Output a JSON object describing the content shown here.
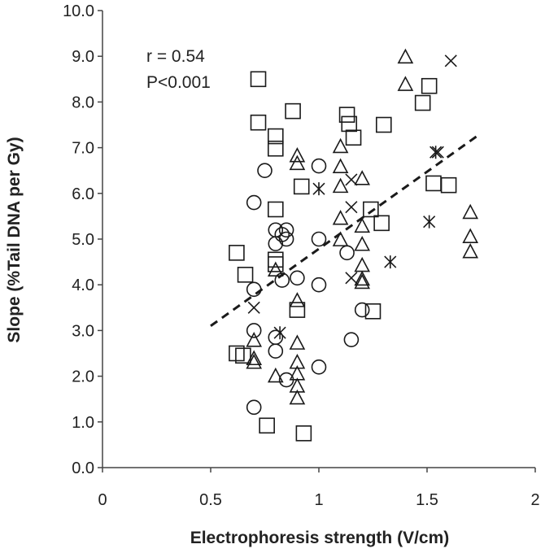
{
  "chart_data": {
    "type": "scatter",
    "title": "",
    "xlabel": "Electrophoresis strength (V/cm)",
    "ylabel": "Slope (%Tail DNA per Gy)",
    "xlim": [
      0,
      2
    ],
    "ylim": [
      0,
      10
    ],
    "xticks": [
      "0",
      "0.5",
      "1",
      "1.5",
      "2"
    ],
    "yticks": [
      "0.0",
      "1.0",
      "2.0",
      "3.0",
      "4.0",
      "5.0",
      "6.0",
      "7.0",
      "8.0",
      "9.0",
      "10.0"
    ],
    "annotations": {
      "r": "r = 0.54",
      "p": "P<0.001"
    },
    "trendline": {
      "style": "dashed",
      "x": [
        0.5,
        1.73
      ],
      "y": [
        3.1,
        7.25
      ]
    },
    "series": [
      {
        "name": "square",
        "marker": "square",
        "points": [
          [
            0.62,
            4.7
          ],
          [
            0.66,
            4.22
          ],
          [
            0.62,
            2.5
          ],
          [
            0.65,
            2.45
          ],
          [
            0.72,
            8.5
          ],
          [
            0.72,
            7.55
          ],
          [
            0.8,
            7.25
          ],
          [
            0.8,
            6.98
          ],
          [
            0.8,
            5.65
          ],
          [
            0.8,
            4.55
          ],
          [
            0.8,
            4.45
          ],
          [
            0.76,
            0.92
          ],
          [
            0.88,
            7.8
          ],
          [
            0.92,
            6.15
          ],
          [
            0.9,
            3.45
          ],
          [
            0.93,
            0.75
          ],
          [
            1.13,
            7.72
          ],
          [
            1.14,
            7.52
          ],
          [
            1.16,
            7.22
          ],
          [
            1.3,
            7.5
          ],
          [
            1.24,
            5.65
          ],
          [
            1.29,
            5.35
          ],
          [
            1.25,
            3.42
          ],
          [
            1.48,
            7.98
          ],
          [
            1.51,
            8.35
          ],
          [
            1.53,
            6.22
          ],
          [
            1.6,
            6.18
          ]
        ]
      },
      {
        "name": "triangle",
        "marker": "triangle",
        "points": [
          [
            0.7,
            2.78
          ],
          [
            0.7,
            2.38
          ],
          [
            0.7,
            2.3
          ],
          [
            0.8,
            4.32
          ],
          [
            0.8,
            2.0
          ],
          [
            0.9,
            6.82
          ],
          [
            0.9,
            6.65
          ],
          [
            0.9,
            3.65
          ],
          [
            0.9,
            2.72
          ],
          [
            0.9,
            2.3
          ],
          [
            0.9,
            2.05
          ],
          [
            0.9,
            1.78
          ],
          [
            0.9,
            1.52
          ],
          [
            1.1,
            7.02
          ],
          [
            1.1,
            6.58
          ],
          [
            1.1,
            6.15
          ],
          [
            1.1,
            5.45
          ],
          [
            1.1,
            4.98
          ],
          [
            1.2,
            6.32
          ],
          [
            1.2,
            5.28
          ],
          [
            1.2,
            4.88
          ],
          [
            1.2,
            4.42
          ],
          [
            1.2,
            4.12
          ],
          [
            1.2,
            4.05
          ],
          [
            1.4,
            8.98
          ],
          [
            1.4,
            8.38
          ],
          [
            1.7,
            5.58
          ],
          [
            1.7,
            5.05
          ],
          [
            1.7,
            4.72
          ]
        ]
      },
      {
        "name": "circle",
        "marker": "circle",
        "points": [
          [
            0.7,
            5.8
          ],
          [
            0.7,
            3.9
          ],
          [
            0.7,
            3.0
          ],
          [
            0.7,
            1.32
          ],
          [
            0.75,
            6.5
          ],
          [
            0.8,
            5.2
          ],
          [
            0.8,
            4.9
          ],
          [
            0.8,
            2.85
          ],
          [
            0.8,
            2.55
          ],
          [
            0.83,
            5.1
          ],
          [
            0.83,
            4.1
          ],
          [
            0.85,
            5.2
          ],
          [
            0.85,
            5.0
          ],
          [
            0.85,
            1.92
          ],
          [
            0.9,
            4.15
          ],
          [
            1.0,
            6.6
          ],
          [
            1.0,
            5.0
          ],
          [
            1.0,
            4.0
          ],
          [
            1.0,
            2.2
          ],
          [
            1.13,
            4.7
          ],
          [
            1.15,
            2.8
          ],
          [
            1.2,
            3.45
          ]
        ]
      },
      {
        "name": "x-cross",
        "marker": "x",
        "points": [
          [
            0.7,
            3.5
          ],
          [
            1.15,
            5.7
          ],
          [
            1.15,
            4.15
          ],
          [
            1.15,
            6.3
          ],
          [
            1.55,
            6.9
          ],
          [
            1.61,
            8.9
          ]
        ]
      },
      {
        "name": "asterisk",
        "marker": "asterisk",
        "points": [
          [
            0.82,
            2.95
          ],
          [
            1.0,
            6.1
          ],
          [
            1.33,
            4.5
          ],
          [
            1.51,
            5.38
          ],
          [
            1.54,
            6.9
          ]
        ]
      }
    ]
  }
}
